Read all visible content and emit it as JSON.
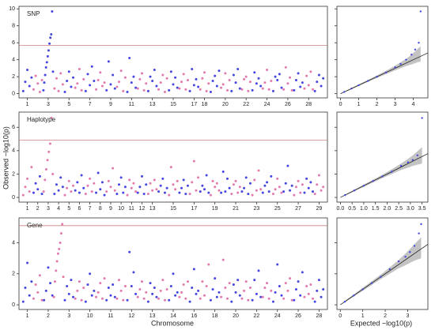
{
  "labels": {
    "y_label": "Observed −log10(p)",
    "x_label_left": "Chromosome",
    "x_label_right": "Expected −log10(p)"
  },
  "chart_data": [
    {
      "type": "manhattan",
      "label": "SNP",
      "colors": [
        "#4646e0",
        "#e27aae"
      ],
      "threshold": 5.7,
      "threshold_color": "#c98080",
      "ylim": [
        -0.5,
        10.3
      ],
      "yticks": [
        0,
        2,
        4,
        6,
        8,
        10
      ],
      "categories": [
        "1",
        null,
        "3",
        null,
        "5",
        null,
        "7",
        null,
        "9",
        null,
        "11",
        null,
        "13",
        null,
        "15",
        null,
        "17",
        "18",
        null,
        "20",
        null,
        "22",
        null,
        "24",
        null,
        "26",
        null,
        "28",
        null
      ],
      "values": [
        [
          0.3,
          1.4,
          2.8,
          0.9,
          1.9
        ],
        [
          0.5,
          2.1,
          1.2,
          0.2,
          1.6
        ],
        [
          0.4,
          1.3,
          2.2,
          3.1,
          3.7,
          4.4,
          5.1,
          5.9,
          6.6,
          7.0,
          9.7,
          2.6
        ],
        [
          0.6,
          1.8,
          0.3,
          2.4,
          1.1
        ],
        [
          0.2,
          1.5,
          2.6,
          0.8,
          1.9
        ],
        [
          0.7,
          1.2,
          2.9,
          0.4,
          1.7
        ],
        [
          0.3,
          2.3,
          1.0,
          3.2,
          1.5
        ],
        [
          0.5,
          1.6,
          2.5,
          0.9,
          1.3
        ],
        [
          0.4,
          3.8,
          1.1,
          2.2,
          0.6
        ],
        [
          0.8,
          1.4,
          2.7,
          0.3,
          1.9
        ],
        [
          0.2,
          4.2,
          1.3,
          2.0,
          0.7
        ],
        [
          0.6,
          1.7,
          2.4,
          0.4,
          1.2
        ],
        [
          0.3,
          2.0,
          1.5,
          2.8,
          0.9
        ],
        [
          0.5,
          1.3,
          2.2,
          0.2,
          1.8
        ],
        [
          0.4,
          2.6,
          1.1,
          1.9,
          0.7
        ],
        [
          0.6,
          1.4,
          2.3,
          0.5,
          1.6
        ],
        [
          0.3,
          2.9,
          1.0,
          1.7,
          0.8
        ],
        [
          0.5,
          1.8,
          2.5,
          0.3,
          1.2
        ],
        [
          0.2,
          1.5,
          2.1,
          0.9,
          2.7
        ],
        [
          0.7,
          1.1,
          2.4,
          0.4,
          1.6
        ],
        [
          0.3,
          2.2,
          1.3,
          2.9,
          0.6
        ],
        [
          0.5,
          1.7,
          2.0,
          0.3,
          1.4
        ],
        [
          0.4,
          2.5,
          1.2,
          1.8,
          0.9
        ],
        [
          0.6,
          1.3,
          2.8,
          0.5,
          1.5
        ],
        [
          0.3,
          2.0,
          1.6,
          2.3,
          0.7
        ],
        [
          0.5,
          3.1,
          1.2,
          1.9,
          0.4
        ],
        [
          0.4,
          1.6,
          2.4,
          0.8,
          1.3
        ],
        [
          0.6,
          2.1,
          1.0,
          2.6,
          0.5
        ],
        [
          0.3,
          1.4,
          2.2,
          0.9,
          1.8
        ]
      ]
    },
    {
      "type": "qq",
      "color": "#4646e0",
      "ylim": [
        -0.5,
        10.3
      ],
      "yticks": [
        0,
        2,
        4,
        6,
        8,
        10
      ],
      "xlim": [
        -0.2,
        4.8
      ],
      "xticks": [
        0,
        1,
        2,
        3,
        4
      ],
      "x": [
        0.2,
        0.6,
        1.0,
        1.5,
        2.0,
        2.5,
        3.0,
        3.3,
        3.6,
        3.9,
        4.1,
        4.3,
        4.4
      ],
      "y": [
        0.2,
        0.6,
        1.0,
        1.5,
        2.0,
        2.5,
        3.1,
        3.5,
        4.0,
        4.6,
        5.2,
        6.0,
        9.7
      ],
      "ci_lower": [
        0.15,
        0.52,
        0.9,
        1.38,
        1.85,
        2.3,
        2.75,
        3.0,
        3.25,
        3.45,
        3.6,
        3.75,
        3.8
      ],
      "ci_upper": [
        0.25,
        0.68,
        1.1,
        1.62,
        2.15,
        2.7,
        3.3,
        3.7,
        4.1,
        4.6,
        5.0,
        5.4,
        5.6
      ]
    },
    {
      "type": "manhattan",
      "label": "Haplotype",
      "colors": [
        "#e27aae",
        "#4646e0"
      ],
      "threshold": 4.9,
      "threshold_color": "#c98080",
      "ylim": [
        -0.4,
        7.3
      ],
      "yticks": [
        0,
        2,
        4,
        6
      ],
      "categories": [
        "1",
        "2",
        "3",
        "4",
        "5",
        "6",
        "7",
        "8",
        "9",
        "10",
        "11",
        "12",
        "13",
        null,
        "15",
        null,
        "17",
        null,
        "19",
        null,
        "21",
        null,
        "23",
        null,
        "25",
        null,
        "27",
        null,
        "29"
      ],
      "values": [
        [
          0.2,
          0.9,
          1.6,
          0.5,
          2.6
        ],
        [
          0.4,
          1.2,
          0.7,
          1.8,
          0.3
        ],
        [
          0.5,
          1.5,
          2.4,
          3.2,
          3.9,
          4.6,
          6.8,
          2.0
        ],
        [
          0.3,
          1.1,
          0.6,
          1.7,
          0.9
        ],
        [
          0.2,
          0.8,
          1.4,
          0.5,
          1.0
        ],
        [
          0.6,
          1.3,
          0.4,
          1.9,
          0.8
        ],
        [
          0.3,
          1.0,
          1.6,
          0.5,
          1.2
        ],
        [
          0.4,
          2.1,
          0.7,
          1.3,
          0.2
        ],
        [
          0.5,
          1.4,
          0.9,
          2.5,
          0.6
        ],
        [
          0.3,
          1.1,
          1.7,
          0.4,
          0.9
        ],
        [
          0.2,
          1.5,
          0.8,
          1.2,
          0.5
        ],
        [
          0.4,
          0.9,
          1.8,
          0.3,
          1.1
        ],
        [
          0.3,
          1.2,
          0.6,
          1.5,
          0.7
        ],
        [
          0.5,
          1.0,
          1.6,
          0.4,
          0.8
        ],
        [
          0.2,
          2.6,
          1.1,
          0.7,
          1.4
        ],
        [
          0.4,
          0.8,
          1.5,
          0.3,
          1.0
        ],
        [
          0.3,
          1.3,
          3.1,
          0.6,
          1.7
        ],
        [
          0.5,
          1.0,
          0.7,
          1.9,
          0.4
        ],
        [
          0.2,
          1.4,
          0.9,
          1.2,
          0.6
        ],
        [
          0.4,
          2.2,
          0.5,
          1.6,
          0.8
        ],
        [
          0.3,
          1.1,
          1.4,
          0.4,
          0.9
        ],
        [
          0.5,
          0.8,
          1.7,
          0.3,
          1.2
        ],
        [
          0.2,
          1.5,
          0.6,
          2.3,
          0.7
        ],
        [
          0.4,
          1.0,
          1.3,
          0.5,
          1.8
        ],
        [
          0.3,
          0.7,
          1.6,
          0.9,
          0.4
        ],
        [
          0.5,
          1.2,
          2.7,
          0.6,
          1.0
        ],
        [
          0.2,
          0.9,
          1.4,
          0.4,
          1.1
        ],
        [
          0.4,
          1.6,
          0.8,
          1.3,
          0.5
        ],
        [
          0.3,
          1.1,
          1.9,
          0.6,
          0.9
        ]
      ]
    },
    {
      "type": "qq",
      "color": "#4646e0",
      "ylim": [
        -0.4,
        7.3
      ],
      "yticks": [
        0,
        2,
        4,
        6
      ],
      "xlim": [
        -0.15,
        3.75
      ],
      "xticks": [
        {
          "value": 0,
          "label": "0.0"
        },
        0.5,
        {
          "value": 1,
          "label": "1.0"
        },
        1.5,
        {
          "value": 2,
          "label": "2.0"
        },
        2.5,
        {
          "value": 3,
          "label": "3.0"
        },
        3.5
      ],
      "x": [
        0.2,
        0.6,
        1.0,
        1.4,
        1.8,
        2.2,
        2.6,
        2.9,
        3.1,
        3.3,
        3.5
      ],
      "y": [
        0.2,
        0.6,
        1.0,
        1.4,
        1.8,
        2.2,
        2.7,
        3.0,
        3.2,
        3.6,
        6.8
      ],
      "ci_lower": [
        0.15,
        0.53,
        0.9,
        1.28,
        1.65,
        2.0,
        2.35,
        2.55,
        2.7,
        2.8,
        2.9
      ],
      "ci_upper": [
        0.25,
        0.67,
        1.1,
        1.52,
        1.95,
        2.4,
        2.9,
        3.3,
        3.6,
        3.95,
        4.3
      ]
    },
    {
      "type": "manhattan",
      "label": "Gene",
      "colors": [
        "#4646e0",
        "#e27aae"
      ],
      "threshold": 5.1,
      "threshold_color": "#c98080",
      "ylim": [
        -0.3,
        5.6
      ],
      "yticks": [
        0,
        2,
        4
      ],
      "categories": [
        "1",
        null,
        "2",
        null,
        "3",
        null,
        "10",
        null,
        "11",
        null,
        "12",
        null,
        "13",
        null,
        "14",
        null,
        "16",
        null,
        "18",
        null,
        "20",
        null,
        "22",
        null,
        "24",
        null,
        "26",
        null,
        "28"
      ],
      "values": [
        [
          0.2,
          1.1,
          2.7,
          0.6,
          1.5
        ],
        [
          0.4,
          1.3,
          0.8,
          1.9,
          0.3
        ],
        [
          0.3,
          0.9,
          2.4,
          1.4,
          0.6
        ],
        [
          0.5,
          1.5,
          2.2,
          2.8,
          3.3,
          3.6,
          4.0,
          4.6,
          5.2,
          1.8
        ],
        [
          0.3,
          1.2,
          0.7,
          1.6,
          0.5
        ],
        [
          0.4,
          0.9,
          1.5,
          0.3,
          1.1
        ],
        [
          0.2,
          1.3,
          2.0,
          0.6,
          0.9
        ],
        [
          0.5,
          0.8,
          1.4,
          0.4,
          1.7
        ],
        [
          0.3,
          1.1,
          0.6,
          1.3,
          0.5
        ],
        [
          0.4,
          1.6,
          0.9,
          0.3,
          1.2
        ],
        [
          0.3,
          3.4,
          1.2,
          2.1,
          0.7
        ],
        [
          0.5,
          1.0,
          1.5,
          0.4,
          0.8
        ],
        [
          0.2,
          1.4,
          0.7,
          1.1,
          0.5
        ],
        [
          0.4,
          0.9,
          1.6,
          0.3,
          1.0
        ],
        [
          0.3,
          1.2,
          2.0,
          0.6,
          0.8
        ],
        [
          0.5,
          0.8,
          1.3,
          0.4,
          1.5
        ],
        [
          0.2,
          1.1,
          2.3,
          0.7,
          0.9
        ],
        [
          0.4,
          1.5,
          0.6,
          1.2,
          2.6
        ],
        [
          0.3,
          1.0,
          1.7,
          0.5,
          0.8
        ],
        [
          0.5,
          2.9,
          1.1,
          0.4,
          1.4
        ],
        [
          0.2,
          1.3,
          0.8,
          1.6,
          0.6
        ],
        [
          0.4,
          0.9,
          1.5,
          0.3,
          1.1
        ],
        [
          0.3,
          1.6,
          0.7,
          2.2,
          0.5
        ],
        [
          0.5,
          1.1,
          1.4,
          0.4,
          0.9
        ],
        [
          0.2,
          0.8,
          2.6,
          1.2,
          0.6
        ],
        [
          0.4,
          1.4,
          0.9,
          1.7,
          0.3
        ],
        [
          0.3,
          1.0,
          1.5,
          0.6,
          2.1
        ],
        [
          0.5,
          1.2,
          0.7,
          1.3,
          0.4
        ],
        [
          0.2,
          0.9,
          1.6,
          0.5,
          1.0
        ]
      ]
    },
    {
      "type": "qq",
      "color": "#4646e0",
      "ylim": [
        -0.3,
        5.6
      ],
      "yticks": [
        0,
        2,
        4
      ],
      "xlim": [
        -0.15,
        3.9
      ],
      "xticks": [
        0,
        1,
        2,
        3
      ],
      "x": [
        0.2,
        0.6,
        1.0,
        1.4,
        1.8,
        2.2,
        2.6,
        2.9,
        3.1,
        3.3,
        3.5,
        3.6
      ],
      "y": [
        0.2,
        0.6,
        1.0,
        1.4,
        1.8,
        2.3,
        2.8,
        3.1,
        3.4,
        3.8,
        4.6,
        5.2
      ],
      "ci_lower": [
        0.15,
        0.53,
        0.9,
        1.28,
        1.65,
        2.0,
        2.35,
        2.55,
        2.7,
        2.85,
        2.95,
        3.0
      ],
      "ci_upper": [
        0.25,
        0.67,
        1.1,
        1.52,
        1.95,
        2.4,
        2.9,
        3.3,
        3.6,
        3.9,
        4.2,
        4.35
      ]
    }
  ]
}
